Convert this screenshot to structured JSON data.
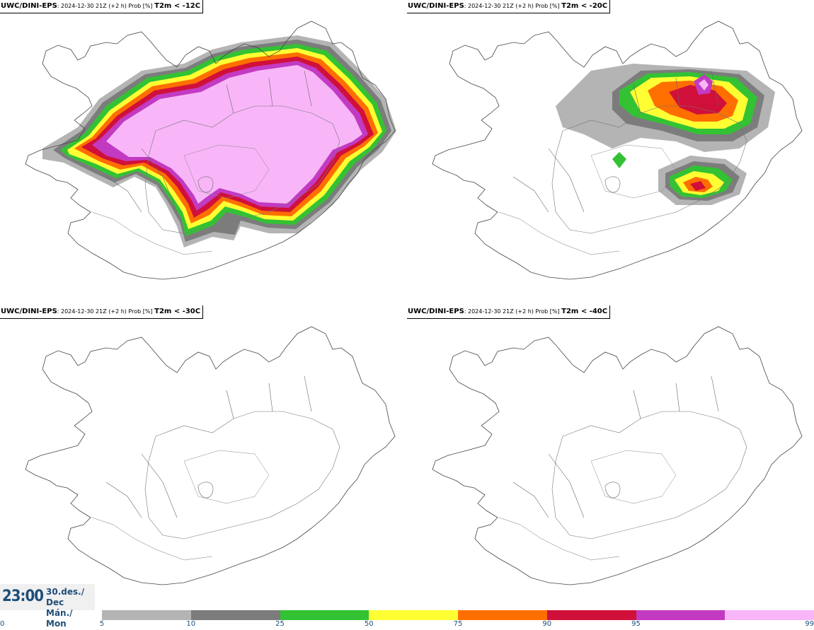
{
  "panels": [
    {
      "source": "UWC/DINI-EPS",
      "meta": ": 2024-12-30 21Z (+2 h) Prob [%] ",
      "threshold": "T2m < -12C"
    },
    {
      "source": "UWC/DINI-EPS",
      "meta": ": 2024-12-30 21Z (+2 h) Prob [%] ",
      "threshold": "T2m < -20C"
    },
    {
      "source": "UWC/DINI-EPS",
      "meta": ": 2024-12-30 21Z (+2 h) Prob [%] ",
      "threshold": "T2m < -30C"
    },
    {
      "source": "UWC/DINI-EPS",
      "meta": ": 2024-12-30 21Z (+2 h) Prob [%] ",
      "threshold": "T2m < -40C"
    }
  ],
  "clock": {
    "time": "23:00",
    "date_line1": "30.des./ Dec",
    "date_line2": "Mán./ Mon"
  },
  "legend": {
    "ticks": [
      "0",
      "5",
      "10",
      "25",
      "50",
      "75",
      "90",
      "95",
      "99"
    ],
    "colors": [
      "#b4b4b4",
      "#7c7c7c",
      "#33c233",
      "#ffff33",
      "#ff6f00",
      "#d0103a",
      "#c23ac2",
      "#f8b6f8"
    ]
  }
}
